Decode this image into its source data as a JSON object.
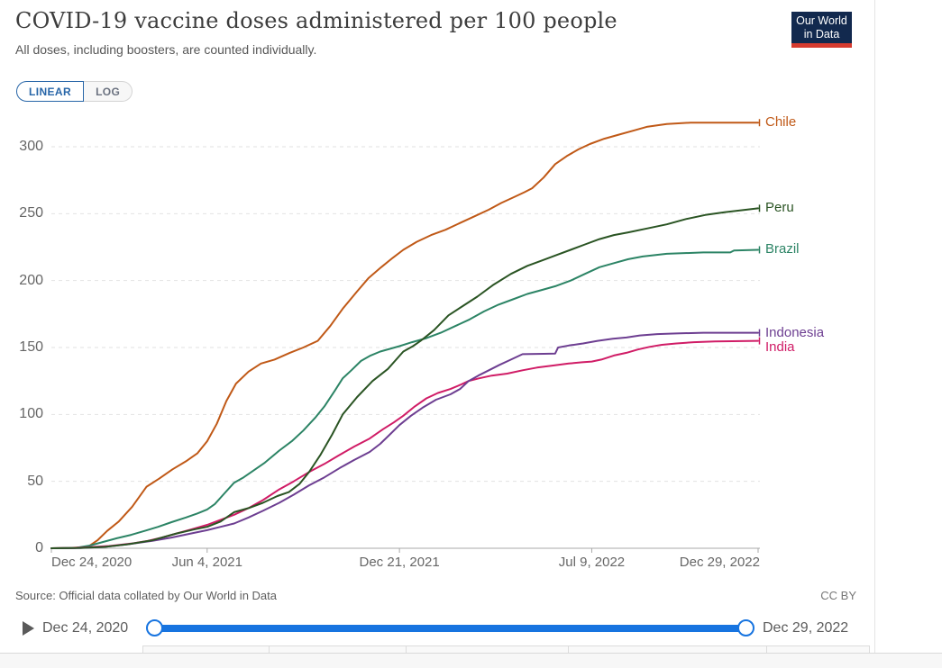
{
  "header": {
    "title": "COVID-19 vaccine doses administered per 100 people",
    "subtitle": "All doses, including boosters, are counted individually."
  },
  "logo": {
    "line1": "Our World",
    "line2": "in Data",
    "navy": "#12294e",
    "red": "#d63b2f"
  },
  "toggles": {
    "linear": "LINEAR",
    "log": "LOG",
    "accent": "#2866a8"
  },
  "footer": {
    "source": "Source: Official data collated by Our World in Data",
    "license": "CC BY"
  },
  "timeline": {
    "start_label": "Dec 24, 2020",
    "end_label": "Dec 29, 2022",
    "slider_color": "#1774e0"
  },
  "chart_data": {
    "type": "line",
    "title": "COVID-19 vaccine doses administered per 100 people",
    "subtitle": "All doses, including boosters, are counted individually.",
    "xlabel": "",
    "ylabel": "",
    "x_unit": "days since Dec 24, 2020",
    "x_range_days": [
      0,
      735
    ],
    "ylim": [
      0,
      320
    ],
    "grid": true,
    "legend_position": "right-end-labels",
    "yticks": [
      0,
      50,
      100,
      150,
      200,
      250,
      300
    ],
    "xticks": [
      {
        "day": 0,
        "label": "Dec 24, 2020"
      },
      {
        "day": 162,
        "label": "Jun 4, 2021"
      },
      {
        "day": 362,
        "label": "Dec 21, 2021"
      },
      {
        "day": 562,
        "label": "Jul 9, 2022"
      },
      {
        "day": 735,
        "label": "Dec 29, 2022"
      }
    ],
    "series": [
      {
        "name": "Chile",
        "color": "#c05917",
        "end_value": 318,
        "points": [
          [
            0,
            0
          ],
          [
            20,
            0.3
          ],
          [
            38,
            1
          ],
          [
            48,
            6
          ],
          [
            58,
            13
          ],
          [
            70,
            20
          ],
          [
            84,
            31
          ],
          [
            99,
            46
          ],
          [
            112,
            52
          ],
          [
            126,
            59
          ],
          [
            140,
            65
          ],
          [
            152,
            71
          ],
          [
            162,
            80
          ],
          [
            172,
            93
          ],
          [
            182,
            110
          ],
          [
            192,
            123
          ],
          [
            205,
            132
          ],
          [
            218,
            138
          ],
          [
            232,
            141
          ],
          [
            248,
            146
          ],
          [
            262,
            150
          ],
          [
            277,
            155
          ],
          [
            290,
            166
          ],
          [
            303,
            179
          ],
          [
            318,
            192
          ],
          [
            330,
            202
          ],
          [
            343,
            210
          ],
          [
            355,
            217
          ],
          [
            366,
            223
          ],
          [
            380,
            229
          ],
          [
            395,
            234
          ],
          [
            410,
            238
          ],
          [
            425,
            243
          ],
          [
            440,
            248
          ],
          [
            455,
            253
          ],
          [
            468,
            258
          ],
          [
            480,
            262
          ],
          [
            492,
            266
          ],
          [
            500,
            269
          ],
          [
            512,
            277
          ],
          [
            524,
            287
          ],
          [
            536,
            293
          ],
          [
            548,
            298
          ],
          [
            560,
            302
          ],
          [
            575,
            306
          ],
          [
            590,
            309
          ],
          [
            605,
            312
          ],
          [
            620,
            315
          ],
          [
            640,
            317
          ],
          [
            665,
            318
          ],
          [
            700,
            318
          ],
          [
            735,
            318
          ]
        ]
      },
      {
        "name": "Brazil",
        "color": "#2c8465",
        "end_value": 223,
        "points": [
          [
            0,
            0
          ],
          [
            25,
            0.3
          ],
          [
            40,
            2
          ],
          [
            55,
            5
          ],
          [
            68,
            7.5
          ],
          [
            83,
            10
          ],
          [
            97,
            13
          ],
          [
            111,
            16
          ],
          [
            125,
            19.5
          ],
          [
            140,
            23
          ],
          [
            152,
            26
          ],
          [
            162,
            29
          ],
          [
            170,
            33
          ],
          [
            180,
            41
          ],
          [
            190,
            49
          ],
          [
            200,
            53
          ],
          [
            210,
            58
          ],
          [
            222,
            64
          ],
          [
            237,
            73
          ],
          [
            250,
            80
          ],
          [
            262,
            88
          ],
          [
            275,
            98
          ],
          [
            284,
            106
          ],
          [
            295,
            118
          ],
          [
            303,
            127
          ],
          [
            312,
            133
          ],
          [
            322,
            140
          ],
          [
            332,
            144
          ],
          [
            342,
            147
          ],
          [
            352,
            149
          ],
          [
            362,
            151
          ],
          [
            375,
            154
          ],
          [
            390,
            157
          ],
          [
            405,
            161
          ],
          [
            420,
            166
          ],
          [
            435,
            171
          ],
          [
            450,
            177
          ],
          [
            465,
            182
          ],
          [
            480,
            186
          ],
          [
            495,
            190
          ],
          [
            510,
            193
          ],
          [
            525,
            196
          ],
          [
            540,
            200
          ],
          [
            555,
            205
          ],
          [
            570,
            210
          ],
          [
            585,
            213
          ],
          [
            600,
            216
          ],
          [
            615,
            218
          ],
          [
            640,
            220
          ],
          [
            678,
            221
          ],
          [
            706,
            221
          ],
          [
            710,
            222.5
          ],
          [
            735,
            223
          ]
        ]
      },
      {
        "name": "India",
        "color": "#d01c66",
        "end_value": 155,
        "points": [
          [
            0,
            0
          ],
          [
            22,
            0.2
          ],
          [
            40,
            0.8
          ],
          [
            60,
            1.7
          ],
          [
            83,
            3.5
          ],
          [
            100,
            5.5
          ],
          [
            115,
            8
          ],
          [
            130,
            11
          ],
          [
            145,
            14
          ],
          [
            162,
            17.5
          ],
          [
            175,
            21
          ],
          [
            190,
            25
          ],
          [
            205,
            30
          ],
          [
            220,
            36
          ],
          [
            237,
            44
          ],
          [
            252,
            50
          ],
          [
            268,
            57
          ],
          [
            284,
            63
          ],
          [
            298,
            69
          ],
          [
            315,
            76
          ],
          [
            331,
            82
          ],
          [
            345,
            89
          ],
          [
            356,
            94
          ],
          [
            366,
            99
          ],
          [
            378,
            106
          ],
          [
            390,
            112
          ],
          [
            402,
            116
          ],
          [
            415,
            119
          ],
          [
            425,
            122
          ],
          [
            434,
            125
          ],
          [
            445,
            127
          ],
          [
            458,
            129
          ],
          [
            474,
            130.5
          ],
          [
            490,
            133
          ],
          [
            505,
            135
          ],
          [
            521,
            136.5
          ],
          [
            538,
            138
          ],
          [
            552,
            139
          ],
          [
            562,
            139.5
          ],
          [
            572,
            141
          ],
          [
            585,
            144
          ],
          [
            598,
            146
          ],
          [
            610,
            148.5
          ],
          [
            622,
            150.5
          ],
          [
            635,
            152
          ],
          [
            650,
            153
          ],
          [
            668,
            154
          ],
          [
            690,
            154.5
          ],
          [
            735,
            155
          ]
        ]
      },
      {
        "name": "Indonesia",
        "color": "#6d3e91",
        "end_value": 161,
        "points": [
          [
            0,
            0
          ],
          [
            30,
            0.2
          ],
          [
            55,
            1
          ],
          [
            80,
            3
          ],
          [
            105,
            5.5
          ],
          [
            125,
            8
          ],
          [
            145,
            11
          ],
          [
            162,
            13.5
          ],
          [
            176,
            16
          ],
          [
            190,
            18.5
          ],
          [
            205,
            23
          ],
          [
            220,
            28
          ],
          [
            237,
            34
          ],
          [
            252,
            40
          ],
          [
            268,
            47
          ],
          [
            284,
            53
          ],
          [
            300,
            60
          ],
          [
            315,
            66
          ],
          [
            331,
            72
          ],
          [
            342,
            78
          ],
          [
            352,
            85
          ],
          [
            362,
            92
          ],
          [
            374,
            99
          ],
          [
            386,
            105
          ],
          [
            400,
            111
          ],
          [
            415,
            115
          ],
          [
            425,
            119
          ],
          [
            434,
            125
          ],
          [
            444,
            129
          ],
          [
            455,
            133
          ],
          [
            466,
            137
          ],
          [
            478,
            141
          ],
          [
            490,
            145
          ],
          [
            512,
            145.3
          ],
          [
            524,
            145.5
          ],
          [
            527,
            150
          ],
          [
            538,
            151.5
          ],
          [
            553,
            153
          ],
          [
            568,
            155
          ],
          [
            584,
            156.5
          ],
          [
            598,
            157.5
          ],
          [
            612,
            159
          ],
          [
            630,
            160
          ],
          [
            650,
            160.5
          ],
          [
            678,
            161
          ],
          [
            735,
            161
          ]
        ]
      },
      {
        "name": "Peru",
        "color": "#2a5423",
        "end_value": 254,
        "points": [
          [
            0,
            0
          ],
          [
            30,
            0.3
          ],
          [
            55,
            1
          ],
          [
            80,
            3
          ],
          [
            105,
            6
          ],
          [
            130,
            11
          ],
          [
            148,
            14
          ],
          [
            162,
            16
          ],
          [
            176,
            20
          ],
          [
            190,
            27
          ],
          [
            205,
            30
          ],
          [
            220,
            34
          ],
          [
            235,
            39
          ],
          [
            247,
            42
          ],
          [
            258,
            48
          ],
          [
            268,
            57
          ],
          [
            280,
            70
          ],
          [
            292,
            85
          ],
          [
            303,
            100
          ],
          [
            318,
            113
          ],
          [
            334,
            125
          ],
          [
            350,
            134
          ],
          [
            366,
            147
          ],
          [
            376,
            151
          ],
          [
            384,
            155
          ],
          [
            398,
            163
          ],
          [
            413,
            174
          ],
          [
            428,
            181
          ],
          [
            443,
            188
          ],
          [
            460,
            197
          ],
          [
            478,
            205
          ],
          [
            495,
            211
          ],
          [
            510,
            215
          ],
          [
            525,
            219
          ],
          [
            540,
            223
          ],
          [
            555,
            227
          ],
          [
            570,
            231
          ],
          [
            585,
            234
          ],
          [
            600,
            236
          ],
          [
            620,
            239
          ],
          [
            640,
            242
          ],
          [
            660,
            246
          ],
          [
            680,
            249
          ],
          [
            700,
            251
          ],
          [
            735,
            254
          ]
        ]
      }
    ]
  }
}
